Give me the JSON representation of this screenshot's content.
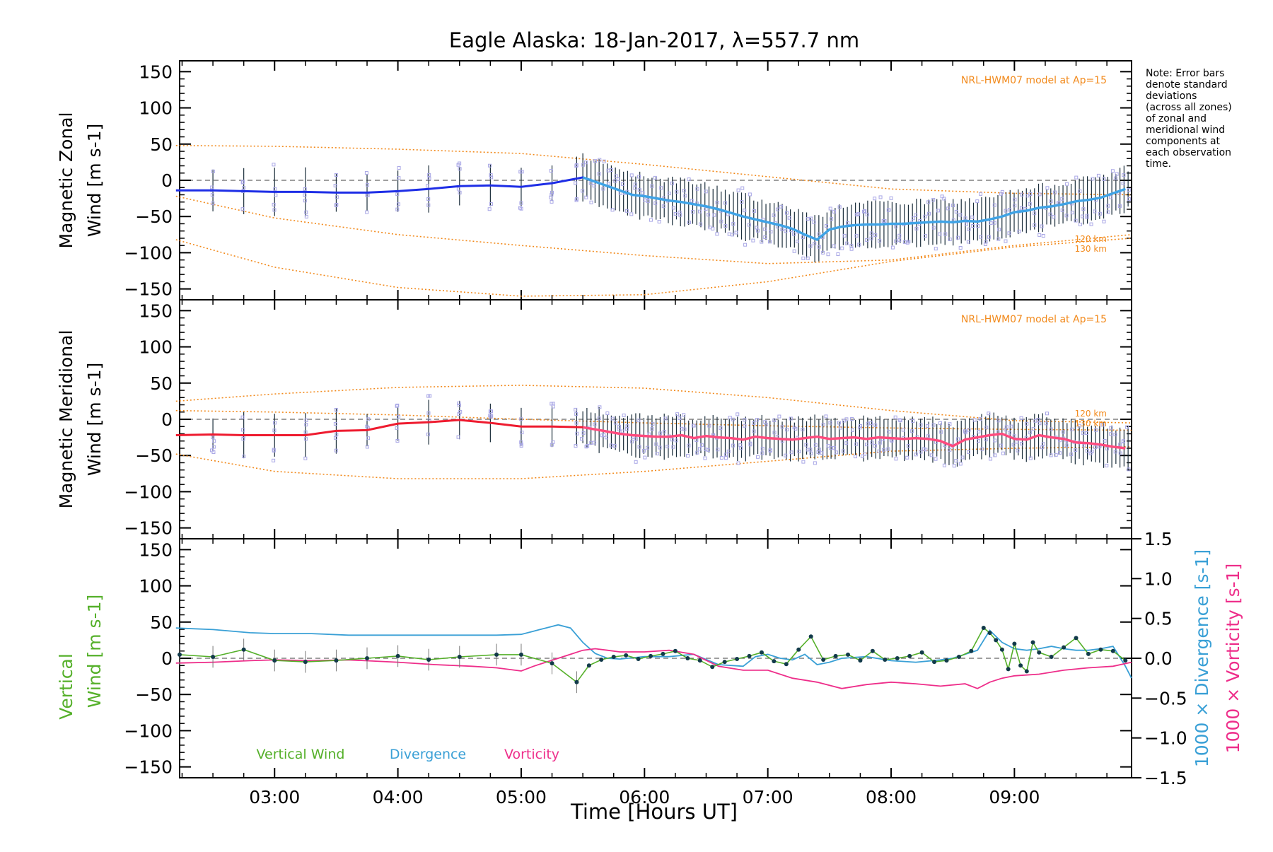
{
  "title": "Eagle Alaska: 18-Jan-2017, λ=557.7 nm",
  "note": [
    "Note: Error bars",
    "denote standard",
    "deviations",
    "(across all zones)",
    "of zonal and",
    "meridional wind",
    "components at",
    "each observation",
    "time."
  ],
  "xaxis": {
    "label": "Time [Hours UT]",
    "ticks": [
      "03:00",
      "04:00",
      "05:00",
      "06:00",
      "07:00",
      "08:00",
      "09:00"
    ],
    "tick_hours": [
      3,
      4,
      5,
      6,
      7,
      8,
      9
    ],
    "range_hours": [
      2.23,
      9.95
    ]
  },
  "colors": {
    "zonal": "#1e2ee6",
    "zonal_fine": "#3fa3e6",
    "meridional": "#ee1b2f",
    "meridional_fine": "#ff4b7e",
    "model": "#f28a1c",
    "scatter": "#a9a7e6",
    "errbar": "#1a2d3a",
    "vertical": "#55b02a",
    "divergence": "#3aa0d6",
    "vorticity": "#ee2e8a",
    "zero": "#666666"
  },
  "chart_data": [
    {
      "type": "line",
      "panel": "zonal",
      "ylabel_lines": [
        "Magnetic Zonal",
        "Wind [m s-1]"
      ],
      "yticks": [
        "150",
        "100",
        "50",
        "0",
        "−50",
        "−100",
        "−150"
      ],
      "ylim": [
        -165,
        165
      ],
      "model_label": "NRL-HWM07 model at Ap=15",
      "height_labels": [
        "120 km",
        "130 km"
      ],
      "series": [
        {
          "role": "wind",
          "x": [
            2.2,
            2.5,
            2.75,
            3.0,
            3.25,
            3.5,
            3.75,
            4.0,
            4.25,
            4.5,
            4.75,
            5.0,
            5.25,
            5.5,
            5.6,
            5.7,
            5.8,
            5.9,
            6.0,
            6.1,
            6.2,
            6.3,
            6.4,
            6.5,
            6.6,
            6.7,
            6.8,
            6.9,
            7.0,
            7.1,
            7.2,
            7.3,
            7.4,
            7.5,
            7.6,
            7.7,
            7.8,
            7.9,
            8.0,
            8.1,
            8.2,
            8.3,
            8.4,
            8.5,
            8.6,
            8.7,
            8.8,
            8.9,
            9.0,
            9.1,
            9.2,
            9.3,
            9.4,
            9.5,
            9.6,
            9.7,
            9.8,
            9.9
          ],
          "y": [
            -14,
            -14,
            -15,
            -16,
            -16,
            -17,
            -17,
            -15,
            -12,
            -8,
            -7,
            -9,
            -4,
            4,
            -2,
            -8,
            -14,
            -20,
            -22,
            -25,
            -28,
            -30,
            -33,
            -36,
            -40,
            -45,
            -50,
            -54,
            -58,
            -62,
            -67,
            -75,
            -82,
            -68,
            -64,
            -62,
            -61,
            -61,
            -60,
            -60,
            -59,
            -58,
            -57,
            -58,
            -56,
            -57,
            -54,
            -50,
            -44,
            -42,
            -38,
            -36,
            -33,
            -29,
            -27,
            -24,
            -18,
            -12
          ]
        },
        {
          "role": "model_upper",
          "x": [
            2.2,
            3.0,
            4.0,
            5.0,
            6.0,
            7.0,
            8.0,
            9.0,
            9.95
          ],
          "y": [
            48,
            47,
            43,
            37,
            22,
            5,
            -12,
            -18,
            -20
          ]
        },
        {
          "role": "model_mid",
          "x": [
            2.2,
            3.0,
            4.0,
            5.0,
            6.0,
            7.0,
            8.0,
            9.0,
            9.95
          ],
          "y": [
            -22,
            -52,
            -75,
            -90,
            -104,
            -115,
            -110,
            -90,
            -75
          ]
        },
        {
          "role": "model_low",
          "x": [
            2.2,
            3.0,
            4.0,
            5.0,
            6.0,
            7.0,
            8.0,
            9.0,
            9.95
          ],
          "y": [
            -82,
            -120,
            -148,
            -160,
            -158,
            -140,
            -112,
            -92,
            -80
          ]
        }
      ]
    },
    {
      "type": "line",
      "panel": "meridional",
      "ylabel_lines": [
        "Magnetic Meridional",
        "Wind [m s-1]"
      ],
      "yticks": [
        "150",
        "100",
        "50",
        "0",
        "−50",
        "−100",
        "−150"
      ],
      "ylim": [
        -165,
        165
      ],
      "model_label": "NRL-HWM07 model at Ap=15",
      "height_labels": [
        "120 km",
        "130 km"
      ],
      "series": [
        {
          "role": "wind",
          "x": [
            2.2,
            2.5,
            2.75,
            3.0,
            3.25,
            3.5,
            3.75,
            4.0,
            4.25,
            4.5,
            4.75,
            5.0,
            5.25,
            5.5,
            5.6,
            5.7,
            5.8,
            5.9,
            6.0,
            6.1,
            6.2,
            6.3,
            6.4,
            6.5,
            6.6,
            6.7,
            6.8,
            6.9,
            7.0,
            7.1,
            7.2,
            7.3,
            7.4,
            7.5,
            7.6,
            7.7,
            7.8,
            7.9,
            8.0,
            8.1,
            8.2,
            8.3,
            8.4,
            8.5,
            8.6,
            8.7,
            8.8,
            8.9,
            9.0,
            9.1,
            9.2,
            9.3,
            9.4,
            9.5,
            9.6,
            9.7,
            9.8,
            9.9
          ],
          "y": [
            -22,
            -21,
            -22,
            -22,
            -22,
            -16,
            -15,
            -6,
            -4,
            -1,
            -5,
            -10,
            -10,
            -11,
            -14,
            -17,
            -20,
            -22,
            -23,
            -24,
            -24,
            -22,
            -26,
            -23,
            -25,
            -26,
            -28,
            -24,
            -26,
            -27,
            -28,
            -26,
            -24,
            -27,
            -26,
            -25,
            -27,
            -25,
            -26,
            -27,
            -26,
            -27,
            -30,
            -37,
            -28,
            -25,
            -22,
            -20,
            -27,
            -28,
            -22,
            -25,
            -27,
            -32,
            -33,
            -35,
            -38,
            -40
          ]
        },
        {
          "role": "model_upper",
          "x": [
            2.2,
            3.0,
            4.0,
            5.0,
            6.0,
            7.0,
            8.0,
            9.0,
            9.95
          ],
          "y": [
            25,
            35,
            44,
            47,
            43,
            30,
            12,
            -2,
            -5
          ]
        },
        {
          "role": "model_mid",
          "x": [
            2.2,
            3.0,
            4.0,
            5.0,
            6.0,
            7.0,
            8.0,
            9.0,
            9.95
          ],
          "y": [
            12,
            10,
            6,
            0,
            -5,
            -9,
            -12,
            -14,
            -15
          ]
        },
        {
          "role": "model_low",
          "x": [
            2.2,
            3.0,
            4.0,
            5.0,
            6.0,
            7.0,
            8.0,
            9.0,
            9.95
          ],
          "y": [
            -48,
            -72,
            -82,
            -82,
            -72,
            -58,
            -44,
            -40,
            -38
          ]
        }
      ]
    },
    {
      "type": "line",
      "panel": "vertical",
      "ylabel_lines": [
        "Vertical",
        "Wind [m s-1]"
      ],
      "yticks": [
        "150",
        "100",
        "50",
        "0",
        "−50",
        "−100",
        "−150"
      ],
      "ylim": [
        -165,
        165
      ],
      "right_axis": {
        "label_div": "1000 × Divergence [s-1]",
        "label_vort": "1000 × Vorticity [s-1]",
        "ticks": [
          "1.5",
          "1.0",
          "0.5",
          "0.0",
          "−0.5",
          "−1.0",
          "−1.5"
        ],
        "ylim": [
          -1.5,
          1.5
        ]
      },
      "legend": [
        "Vertical Wind",
        "Divergence",
        "Vorticity"
      ],
      "series": [
        {
          "name": "Vertical Wind",
          "x": [
            2.23,
            2.5,
            2.75,
            3.0,
            3.25,
            3.5,
            3.75,
            4.0,
            4.25,
            4.5,
            4.8,
            5.0,
            5.25,
            5.45,
            5.55,
            5.65,
            5.75,
            5.85,
            5.95,
            6.05,
            6.15,
            6.25,
            6.35,
            6.45,
            6.55,
            6.65,
            6.75,
            6.85,
            6.95,
            7.05,
            7.15,
            7.25,
            7.35,
            7.45,
            7.55,
            7.65,
            7.75,
            7.85,
            7.95,
            8.05,
            8.15,
            8.25,
            8.35,
            8.45,
            8.55,
            8.65,
            8.75,
            8.8,
            8.85,
            8.9,
            8.95,
            9.0,
            9.05,
            9.1,
            9.15,
            9.2,
            9.3,
            9.4,
            9.5,
            9.6,
            9.7,
            9.8,
            9.9
          ],
          "y": [
            5,
            2,
            12,
            -3,
            -5,
            -3,
            0,
            3,
            -2,
            2,
            5,
            5,
            -7,
            -33,
            -10,
            -2,
            2,
            4,
            -1,
            3,
            6,
            10,
            0,
            -3,
            -12,
            -5,
            -1,
            3,
            8,
            -4,
            -8,
            12,
            30,
            -2,
            3,
            5,
            -3,
            10,
            -2,
            0,
            3,
            8,
            -5,
            -3,
            2,
            10,
            42,
            35,
            25,
            12,
            -15,
            20,
            -10,
            -18,
            22,
            8,
            2,
            15,
            28,
            6,
            12,
            10,
            -3
          ]
        },
        {
          "name": "Divergence",
          "x": [
            2.2,
            2.5,
            2.8,
            3.0,
            3.3,
            3.6,
            4.0,
            4.3,
            4.6,
            4.8,
            5.0,
            5.1,
            5.2,
            5.3,
            5.4,
            5.5,
            5.6,
            5.7,
            5.8,
            6.0,
            6.2,
            6.4,
            6.6,
            6.8,
            6.9,
            7.0,
            7.1,
            7.2,
            7.3,
            7.4,
            7.5,
            7.6,
            7.8,
            8.0,
            8.2,
            8.4,
            8.5,
            8.6,
            8.7,
            8.8,
            8.9,
            9.0,
            9.1,
            9.2,
            9.3,
            9.4,
            9.5,
            9.6,
            9.7,
            9.8,
            9.9,
            9.95
          ],
          "y": [
            0.38,
            0.36,
            0.32,
            0.31,
            0.31,
            0.29,
            0.29,
            0.29,
            0.29,
            0.29,
            0.3,
            0.34,
            0.38,
            0.42,
            0.38,
            0.2,
            0.06,
            0.0,
            -0.01,
            0.02,
            0.02,
            0.05,
            -0.08,
            -0.1,
            0.02,
            0.05,
            0.0,
            -0.02,
            0.05,
            -0.08,
            -0.05,
            0.0,
            0.02,
            -0.03,
            -0.05,
            -0.02,
            0.0,
            0.05,
            0.1,
            0.35,
            0.2,
            0.12,
            0.1,
            0.12,
            0.15,
            0.12,
            0.1,
            0.1,
            0.12,
            0.15,
            -0.1,
            -0.25
          ]
        },
        {
          "name": "Vorticity",
          "x": [
            2.2,
            2.5,
            2.8,
            3.0,
            3.3,
            3.6,
            4.0,
            4.3,
            4.6,
            4.8,
            5.0,
            5.1,
            5.2,
            5.3,
            5.4,
            5.5,
            5.6,
            5.7,
            5.8,
            6.0,
            6.2,
            6.4,
            6.6,
            6.8,
            7.0,
            7.2,
            7.4,
            7.6,
            7.8,
            8.0,
            8.2,
            8.4,
            8.6,
            8.7,
            8.8,
            8.9,
            9.0,
            9.2,
            9.4,
            9.6,
            9.8,
            9.95
          ],
          "y": [
            -0.06,
            -0.05,
            -0.03,
            -0.02,
            -0.03,
            -0.02,
            -0.05,
            -0.08,
            -0.1,
            -0.12,
            -0.16,
            -0.1,
            -0.05,
            0.0,
            0.05,
            0.1,
            0.12,
            0.1,
            0.08,
            0.08,
            0.1,
            0.05,
            -0.1,
            -0.15,
            -0.15,
            -0.25,
            -0.3,
            -0.38,
            -0.33,
            -0.3,
            -0.32,
            -0.35,
            -0.32,
            -0.38,
            -0.3,
            -0.25,
            -0.22,
            -0.2,
            -0.15,
            -0.12,
            -0.1,
            -0.05
          ]
        }
      ]
    }
  ]
}
